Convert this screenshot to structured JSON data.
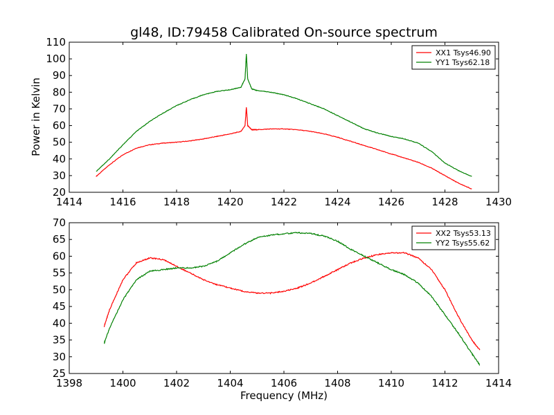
{
  "figure": {
    "title": "gl48, ID:79458 Calibrated On-source spectrum",
    "background": "#ffffff"
  },
  "chart_data": [
    {
      "type": "line",
      "title": "gl48, ID:79458 Calibrated On-source spectrum",
      "xlabel": "",
      "ylabel": "Power in Kelvin",
      "xlim": [
        1414,
        1430
      ],
      "ylim": [
        20,
        110
      ],
      "xticks": [
        1414,
        1416,
        1418,
        1420,
        1422,
        1424,
        1426,
        1428,
        1430
      ],
      "yticks": [
        20,
        30,
        40,
        50,
        60,
        70,
        80,
        90,
        100,
        110
      ],
      "grid": false,
      "legend_placement": "top-right",
      "series": [
        {
          "name": "XX1 Tsys46.90",
          "color": "#ff0000",
          "x": [
            1415.0,
            1415.5,
            1416.0,
            1416.5,
            1417.0,
            1417.5,
            1418.0,
            1418.5,
            1419.0,
            1419.5,
            1420.0,
            1420.4,
            1420.55,
            1420.6,
            1420.65,
            1420.8,
            1421.0,
            1421.5,
            1422.0,
            1422.5,
            1423.0,
            1423.5,
            1424.0,
            1424.5,
            1425.0,
            1425.5,
            1426.0,
            1426.5,
            1427.0,
            1427.5,
            1428.0,
            1428.5,
            1429.0
          ],
          "values": [
            29.5,
            36.5,
            42.5,
            46.5,
            48.5,
            49.5,
            50.0,
            50.8,
            52.0,
            53.5,
            55.0,
            56.5,
            60.0,
            71.0,
            60.0,
            57.5,
            57.5,
            58.0,
            58.0,
            57.5,
            56.5,
            55.0,
            53.0,
            50.5,
            48.0,
            45.5,
            43.0,
            40.5,
            38.0,
            34.5,
            30.0,
            25.5,
            22.0
          ]
        },
        {
          "name": "YY1 Tsys62.18",
          "color": "#008000",
          "x": [
            1415.0,
            1415.5,
            1416.0,
            1416.5,
            1417.0,
            1417.5,
            1418.0,
            1418.5,
            1419.0,
            1419.5,
            1420.0,
            1420.4,
            1420.55,
            1420.6,
            1420.65,
            1420.8,
            1421.0,
            1421.5,
            1422.0,
            1422.5,
            1423.0,
            1423.5,
            1424.0,
            1424.5,
            1425.0,
            1425.5,
            1426.0,
            1426.5,
            1427.0,
            1427.5,
            1428.0,
            1428.5,
            1429.0
          ],
          "values": [
            32.5,
            40.0,
            48.5,
            56.5,
            62.5,
            67.5,
            72.0,
            75.5,
            78.5,
            80.5,
            81.5,
            83.0,
            88.0,
            103.0,
            88.0,
            82.0,
            81.0,
            80.0,
            78.5,
            76.0,
            73.0,
            70.0,
            66.0,
            62.0,
            58.0,
            55.5,
            53.5,
            52.0,
            49.5,
            44.5,
            37.5,
            33.0,
            29.5
          ]
        }
      ]
    },
    {
      "type": "line",
      "xlabel": "Frequency (MHz)",
      "ylabel": "",
      "xlim": [
        1398,
        1414
      ],
      "ylim": [
        25,
        70
      ],
      "xticks": [
        1398,
        1400,
        1402,
        1404,
        1406,
        1408,
        1410,
        1412,
        1414
      ],
      "yticks": [
        25,
        30,
        35,
        40,
        45,
        50,
        55,
        60,
        65,
        70
      ],
      "grid": false,
      "legend_placement": "top-right",
      "series": [
        {
          "name": "XX2 Tsys53.13",
          "color": "#ff0000",
          "x": [
            1399.3,
            1399.5,
            1400.0,
            1400.5,
            1401.0,
            1401.5,
            1402.0,
            1402.5,
            1403.0,
            1403.5,
            1404.0,
            1404.5,
            1405.0,
            1405.5,
            1406.0,
            1406.5,
            1407.0,
            1407.5,
            1408.0,
            1408.5,
            1409.0,
            1409.5,
            1410.0,
            1410.5,
            1411.0,
            1411.5,
            1412.0,
            1412.5,
            1413.0,
            1413.3
          ],
          "values": [
            39.0,
            44.0,
            53.0,
            58.0,
            59.5,
            59.0,
            57.0,
            55.0,
            53.0,
            51.5,
            50.5,
            49.5,
            49.0,
            49.0,
            49.5,
            50.5,
            52.0,
            54.0,
            56.0,
            58.0,
            59.5,
            60.5,
            61.0,
            61.0,
            59.5,
            56.0,
            50.0,
            42.0,
            35.0,
            32.0
          ]
        },
        {
          "name": "YY2 Tsys55.62",
          "color": "#008000",
          "x": [
            1399.3,
            1399.5,
            1400.0,
            1400.5,
            1401.0,
            1401.5,
            1402.0,
            1402.5,
            1403.0,
            1403.5,
            1404.0,
            1404.5,
            1405.0,
            1405.5,
            1406.0,
            1406.5,
            1407.0,
            1407.5,
            1408.0,
            1408.5,
            1409.0,
            1409.5,
            1410.0,
            1410.5,
            1411.0,
            1411.5,
            1412.0,
            1412.5,
            1413.0,
            1413.3
          ],
          "values": [
            34.0,
            38.5,
            47.0,
            53.0,
            55.5,
            56.0,
            56.5,
            56.5,
            57.0,
            58.5,
            61.0,
            63.5,
            65.5,
            66.3,
            66.7,
            67.0,
            66.8,
            66.0,
            64.5,
            62.0,
            60.0,
            58.0,
            56.0,
            54.5,
            52.0,
            48.0,
            42.5,
            37.0,
            31.0,
            27.5
          ]
        }
      ]
    }
  ]
}
